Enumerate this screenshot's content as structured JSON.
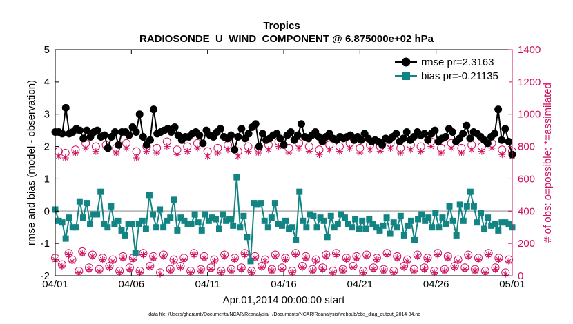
{
  "chart_data": {
    "type": "line",
    "title": "Tropics",
    "subtitle": "RADIOSONDE_U_WIND_COMPONENT @ 6.875000e+02 hPa",
    "xlabel": "Apr.01,2014 00:00:00 start",
    "ylabel": "rmse and bias (model - observation)",
    "y2label": "# of obs: o=possible; *=assimilated",
    "footnote": "data file: /Users/gharamti/Documents/NCAR/Reanalysis/~/Documents/NCAR/Reanalysis/webpub/obs_diag_output_2014-04.nc",
    "xlim": [
      0,
      30
    ],
    "ylim": [
      -2,
      5
    ],
    "y2lim": [
      0,
      1400
    ],
    "x_ticks": [
      0,
      5,
      10,
      15,
      20,
      25,
      30
    ],
    "x_tick_labels": [
      "04/01",
      "04/06",
      "04/11",
      "04/16",
      "04/21",
      "04/26",
      "05/01"
    ],
    "y_ticks": [
      -2,
      -1,
      0,
      1,
      2,
      3,
      4,
      5
    ],
    "y_tick_labels": [
      "-2",
      "-1",
      "0",
      "1",
      "2",
      "3",
      "4",
      "5"
    ],
    "y2_ticks": [
      0,
      200,
      400,
      600,
      800,
      1000,
      1200,
      1400
    ],
    "y2_tick_labels": [
      "0",
      "200",
      "400",
      "600",
      "800",
      "1000",
      "1200",
      "1400"
    ],
    "zero_line": 0,
    "colors": {
      "rmse": "#000000",
      "bias": "#138484",
      "obs": "#d0105f",
      "zero": "#bbbbbb"
    },
    "legend_location": "top-right",
    "series": [
      {
        "name": "rmse pr=2.3163",
        "axis": "left",
        "marker": "circle",
        "values": [
          2.45,
          2.45,
          2.4,
          3.2,
          2.4,
          2.45,
          2.55,
          2.5,
          2.25,
          2.5,
          2.3,
          2.45,
          2.5,
          2.3,
          2.35,
          1.95,
          2.3,
          2.45,
          2.05,
          2.45,
          2.45,
          2.35,
          2.6,
          2.45,
          3.0,
          2.3,
          2.05,
          2.2,
          3.15,
          2.4,
          2.45,
          2.5,
          2.55,
          2.45,
          2.6,
          2.35,
          2.2,
          2.3,
          2.3,
          2.4,
          2.45,
          2.35,
          2.1,
          2.5,
          2.35,
          2.3,
          2.45,
          2.55,
          2.3,
          2.25,
          2.35,
          1.9,
          2.3,
          2.55,
          2.25,
          2.4,
          2.6,
          2.7,
          2.0,
          2.4,
          2.2,
          2.25,
          2.35,
          2.4,
          2.25,
          2.05,
          2.35,
          2.45,
          2.2,
          2.35,
          2.7,
          2.3,
          2.25,
          2.35,
          2.45,
          2.3,
          2.15,
          2.3,
          2.4,
          2.25,
          2.2,
          2.3,
          2.25,
          2.3,
          2.35,
          2.2,
          2.3,
          2.2,
          2.4,
          2.25,
          2.15,
          2.2,
          2.15,
          2.05,
          2.25,
          2.2,
          2.3,
          2.4,
          2.15,
          2.25,
          2.45,
          2.2,
          2.3,
          2.45,
          2.35,
          2.4,
          2.2,
          2.4,
          2.5,
          2.15,
          2.25,
          2.3,
          2.55,
          2.45,
          2.15,
          2.25,
          2.4,
          2.65,
          2.25,
          2.45,
          2.4,
          2.3,
          2.2,
          2.1,
          2.3,
          2.4,
          3.15,
          2.2,
          2.55,
          2.15,
          1.75
        ]
      },
      {
        "name": "bias pr=-0.21135",
        "axis": "left",
        "marker": "square",
        "values": [
          0.05,
          -0.3,
          -0.35,
          -0.85,
          -0.2,
          -0.5,
          -0.5,
          0.3,
          -0.2,
          0.25,
          -0.4,
          -0.1,
          -0.1,
          0.6,
          -0.4,
          -0.5,
          0.15,
          -0.4,
          -0.3,
          -0.6,
          -0.75,
          -0.4,
          -0.4,
          -1.3,
          -0.4,
          -0.3,
          -0.55,
          0.5,
          -0.1,
          -0.5,
          0.05,
          -0.5,
          -0.3,
          -0.2,
          0.35,
          -0.6,
          -0.2,
          -0.3,
          -0.4,
          -0.4,
          -0.1,
          -0.35,
          -0.6,
          -0.1,
          -0.3,
          -0.2,
          -0.25,
          -0.55,
          -0.1,
          -0.3,
          -0.25,
          -0.45,
          1.05,
          -0.5,
          -0.15,
          -0.8,
          -1.55,
          0.25,
          0.2,
          0.25,
          -0.3,
          -0.5,
          -0.2,
          0.25,
          -0.4,
          -0.45,
          -0.3,
          -0.55,
          -0.5,
          -0.9,
          0.6,
          -0.3,
          -0.5,
          -0.1,
          -0.15,
          -0.5,
          -0.2,
          -0.3,
          -0.8,
          -0.15,
          -0.5,
          -0.4,
          -0.1,
          -0.2,
          -0.4,
          -0.5,
          -0.25,
          -0.55,
          -0.3,
          -0.55,
          -0.25,
          -0.4,
          -0.5,
          -0.6,
          -0.45,
          -0.2,
          -0.7,
          -0.35,
          -0.5,
          -0.15,
          -0.75,
          -0.45,
          -0.3,
          -0.9,
          -0.25,
          -0.1,
          -0.3,
          -0.2,
          -0.5,
          -0.05,
          -0.5,
          -0.2,
          -0.4,
          0.15,
          -0.3,
          -0.75,
          0.2,
          -0.3,
          0.15,
          0.6,
          0.15,
          -0.35,
          -0.05,
          -0.55,
          -0.2,
          -0.45,
          -0.4,
          -0.6,
          -0.35,
          -0.35,
          -0.4,
          -0.5
        ]
      },
      {
        "name": "# of obs possible",
        "axis": "right",
        "marker": "open-circle",
        "values": [
          110,
          770,
          70,
          760,
          140,
          100,
          780,
          30,
          150,
          820,
          50,
          130,
          800,
          40,
          110,
          810,
          60,
          100,
          790,
          30,
          120,
          820,
          50,
          110,
          770,
          30,
          140,
          800,
          60,
          120,
          790,
          20,
          130,
          830,
          40,
          100,
          780,
          60,
          110,
          800,
          30,
          140,
          820,
          40,
          120,
          770,
          50,
          100,
          790,
          30,
          130,
          810,
          40,
          110,
          770,
          50,
          140,
          800,
          30,
          120,
          790,
          60,
          100,
          810,
          40,
          130,
          830,
          50,
          110,
          790,
          30,
          140,
          820,
          60,
          120,
          800,
          40,
          100,
          780,
          50,
          130,
          810,
          30,
          140,
          800,
          40,
          110,
          820,
          60,
          120,
          790,
          30,
          130,
          810,
          50,
          110,
          800,
          40,
          140,
          820,
          30,
          120,
          790,
          60,
          100,
          810,
          40,
          130,
          800,
          50,
          110,
          830,
          30,
          140,
          790,
          40,
          120,
          820,
          60,
          100,
          790,
          50,
          130,
          810,
          40,
          110,
          800,
          30,
          140,
          820,
          50,
          110,
          780,
          20,
          100,
          770
        ]
      },
      {
        "name": "# of obs assimilated",
        "axis": "right",
        "marker": "asterisk",
        "values": [
          100,
          740,
          60,
          730,
          130,
          90,
          760,
          20,
          140,
          790,
          40,
          120,
          770,
          30,
          100,
          790,
          50,
          90,
          760,
          20,
          110,
          790,
          40,
          100,
          730,
          20,
          130,
          770,
          50,
          110,
          760,
          10,
          120,
          800,
          30,
          90,
          750,
          50,
          100,
          770,
          20,
          130,
          790,
          30,
          110,
          740,
          40,
          90,
          760,
          20,
          120,
          780,
          30,
          100,
          740,
          40,
          130,
          770,
          20,
          110,
          760,
          50,
          90,
          780,
          30,
          120,
          800,
          40,
          100,
          760,
          20,
          130,
          790,
          50,
          110,
          770,
          30,
          90,
          750,
          40,
          120,
          780,
          20,
          130,
          770,
          30,
          100,
          790,
          50,
          110,
          760,
          20,
          120,
          780,
          40,
          100,
          770,
          30,
          130,
          790,
          20,
          110,
          760,
          50,
          90,
          780,
          30,
          120,
          770,
          40,
          100,
          800,
          20,
          130,
          760,
          30,
          110,
          790,
          50,
          90,
          760,
          40,
          120,
          780,
          30,
          100,
          770,
          20,
          130,
          790,
          40,
          100,
          750,
          10,
          90,
          740
        ]
      }
    ]
  }
}
